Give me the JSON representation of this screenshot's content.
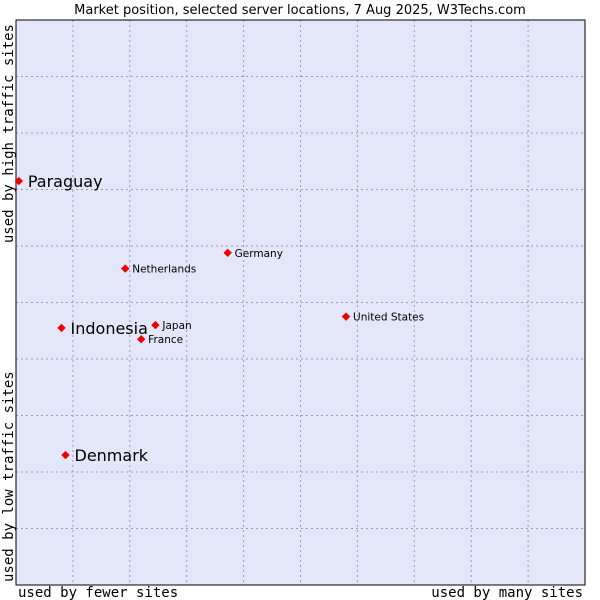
{
  "chart_data": {
    "type": "scatter",
    "title": "Market position, selected server locations, 7 Aug 2025, W3Techs.com",
    "xlabel_left": "used by fewer sites",
    "xlabel_right": "used by many sites",
    "ylabel_top": "used by high traffic sites",
    "ylabel_bottom": "used by low traffic sites",
    "xlim": [
      0,
      100
    ],
    "ylim": [
      0,
      100
    ],
    "grid": true,
    "colors": {
      "plot_bg": "#e4e6fa",
      "marker": "#ee0000",
      "border": "#000000"
    },
    "points": [
      {
        "label": "Paraguay",
        "x": 0.5,
        "y": 71.5,
        "emphasis": true
      },
      {
        "label": "Indonesia",
        "x": 8.0,
        "y": 45.5,
        "emphasis": true
      },
      {
        "label": "Denmark",
        "x": 8.7,
        "y": 23.0,
        "emphasis": true
      },
      {
        "label": "Netherlands",
        "x": 19.2,
        "y": 56.0,
        "emphasis": false
      },
      {
        "label": "Germany",
        "x": 37.2,
        "y": 58.8,
        "emphasis": false
      },
      {
        "label": "Japan",
        "x": 24.5,
        "y": 46.0,
        "emphasis": false
      },
      {
        "label": "France",
        "x": 22.0,
        "y": 43.5,
        "emphasis": false
      },
      {
        "label": "United States",
        "x": 58.0,
        "y": 47.5,
        "emphasis": false
      }
    ]
  }
}
